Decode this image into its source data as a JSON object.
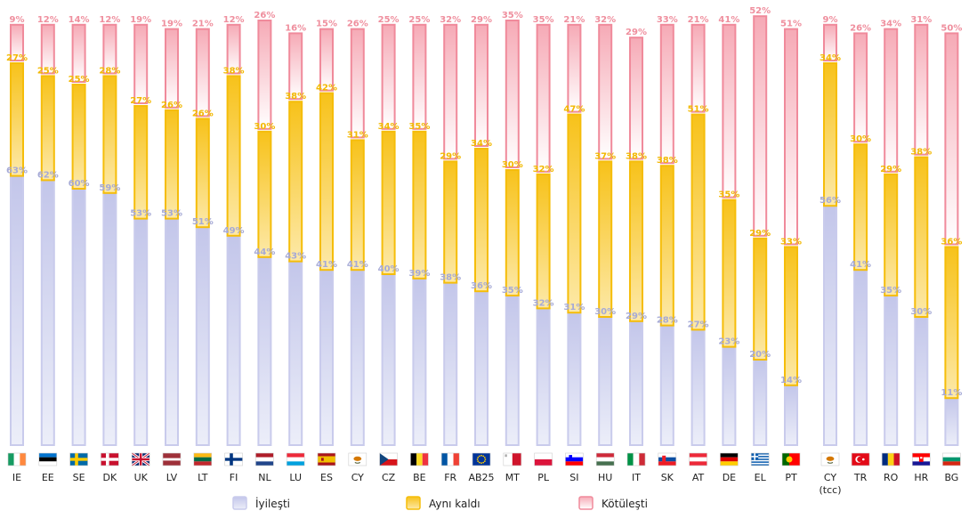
{
  "chart_data": {
    "type": "bar",
    "stacked": true,
    "categories": [
      "IE",
      "EE",
      "SE",
      "DK",
      "UK",
      "LV",
      "LT",
      "FI",
      "NL",
      "LU",
      "ES",
      "CY",
      "CZ",
      "BE",
      "FR",
      "AB25",
      "MT",
      "PL",
      "SI",
      "HU",
      "IT",
      "SK",
      "AT",
      "DE",
      "EL",
      "PT",
      "CY (tcc)",
      "TR",
      "RO",
      "HR",
      "BG"
    ],
    "category_lines": [
      [
        "IE"
      ],
      [
        "EE"
      ],
      [
        "SE"
      ],
      [
        "DK"
      ],
      [
        "UK"
      ],
      [
        "LV"
      ],
      [
        "LT"
      ],
      [
        "FI"
      ],
      [
        "NL"
      ],
      [
        "LU"
      ],
      [
        "ES"
      ],
      [
        "CY"
      ],
      [
        "CZ"
      ],
      [
        "BE"
      ],
      [
        "FR"
      ],
      [
        "AB25"
      ],
      [
        "MT"
      ],
      [
        "PL"
      ],
      [
        "SI"
      ],
      [
        "HU"
      ],
      [
        "IT"
      ],
      [
        "SK"
      ],
      [
        "AT"
      ],
      [
        "DE"
      ],
      [
        "EL"
      ],
      [
        "PT"
      ],
      [
        "CY",
        "(tcc)"
      ],
      [
        "TR"
      ],
      [
        "RO"
      ],
      [
        "HR"
      ],
      [
        "BG"
      ]
    ],
    "series": [
      {
        "name": "İyileşti",
        "color": "#b4b8e2",
        "labels_color": "#a6aad6",
        "values": [
          63,
          62,
          60,
          59,
          53,
          53,
          51,
          49,
          44,
          43,
          41,
          41,
          40,
          39,
          38,
          36,
          35,
          32,
          31,
          30,
          29,
          28,
          27,
          23,
          20,
          14,
          56,
          41,
          35,
          30,
          11
        ]
      },
      {
        "name": "Aynı kaldı",
        "color": "#f7c21a",
        "labels_color": "#f2b800",
        "values": [
          27,
          25,
          25,
          28,
          27,
          26,
          26,
          38,
          30,
          38,
          42,
          31,
          34,
          35,
          29,
          34,
          30,
          32,
          47,
          37,
          38,
          38,
          51,
          35,
          29,
          33,
          34,
          30,
          29,
          38,
          36
        ]
      },
      {
        "name": "Kötüleşti",
        "color": "#f2a0ac",
        "labels_color": "#ef8f9e",
        "values": [
          9,
          12,
          14,
          12,
          19,
          19,
          21,
          12,
          26,
          16,
          15,
          26,
          25,
          25,
          32,
          29,
          35,
          35,
          21,
          32,
          29,
          33,
          21,
          41,
          52,
          51,
          9,
          26,
          34,
          31,
          50
        ]
      }
    ],
    "flags": [
      "ie",
      "ee",
      "se",
      "dk",
      "uk",
      "lv",
      "lt",
      "fi",
      "nl",
      "lu",
      "es",
      "cy",
      "cz",
      "be",
      "fr",
      "eu",
      "mt",
      "pl",
      "si",
      "hu",
      "it",
      "sk",
      "at",
      "de",
      "el",
      "pt",
      "cy",
      "tr",
      "ro",
      "hr",
      "bg"
    ],
    "ylim": [
      0,
      100
    ],
    "legend_position": "bottom",
    "grid": false
  }
}
